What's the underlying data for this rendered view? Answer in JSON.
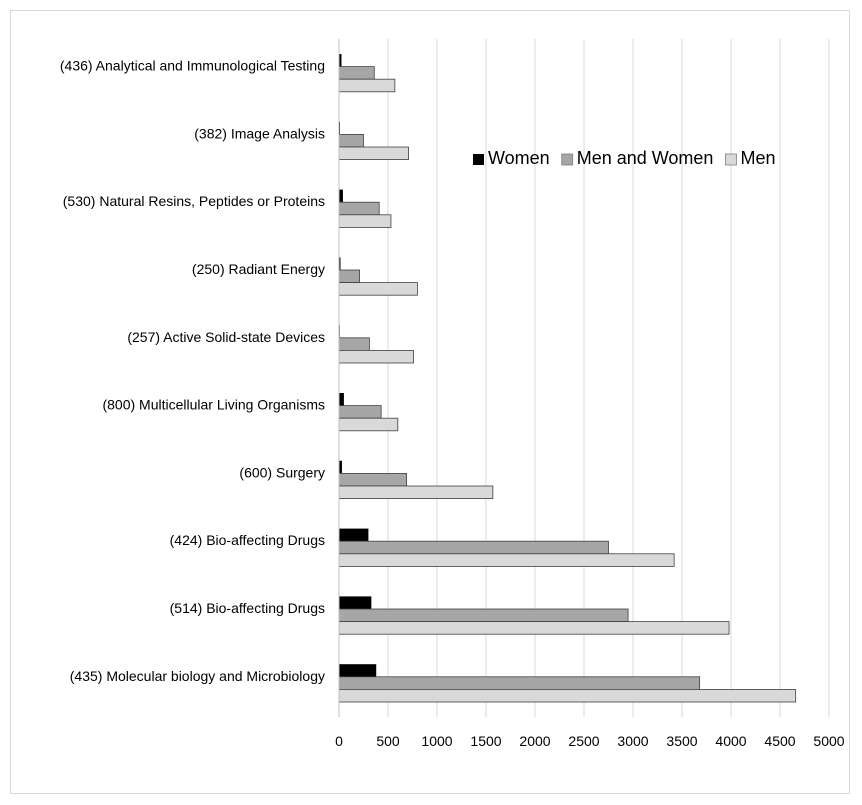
{
  "chart_data": {
    "type": "bar",
    "orientation": "horizontal",
    "categories": [
      "(436) Analytical and Immunological Testing",
      "(382) Image Analysis",
      "(530) Natural Resins, Peptides or Proteins",
      "(250) Radiant Energy",
      "(257) Active Solid-state Devices",
      "(800) Multicellular Living Organisms",
      "(600) Surgery",
      "(424) Bio-affecting Drugs",
      "(514) Bio-affecting Drugs",
      "(435) Molecular biology and Microbiology"
    ],
    "series": [
      {
        "name": "Women",
        "color": "#000000",
        "values": [
          25,
          10,
          40,
          15,
          8,
          50,
          30,
          300,
          330,
          380
        ]
      },
      {
        "name": "Men and Women",
        "color": "#a6a6a6",
        "values": [
          360,
          250,
          410,
          210,
          310,
          430,
          690,
          2750,
          2950,
          3680
        ]
      },
      {
        "name": "Men",
        "color": "#d9d9d9",
        "values": [
          570,
          710,
          530,
          800,
          760,
          600,
          1570,
          3420,
          3980,
          4660
        ]
      }
    ],
    "x_ticks": [
      "0",
      "500",
      "1000",
      "1500",
      "2000",
      "2500",
      "3000",
      "3500",
      "4000",
      "4500",
      "5000"
    ],
    "xlim": [
      0,
      5000
    ],
    "grid": "vertical",
    "legend_position": "top-right",
    "title": "",
    "xlabel": "",
    "ylabel": ""
  }
}
